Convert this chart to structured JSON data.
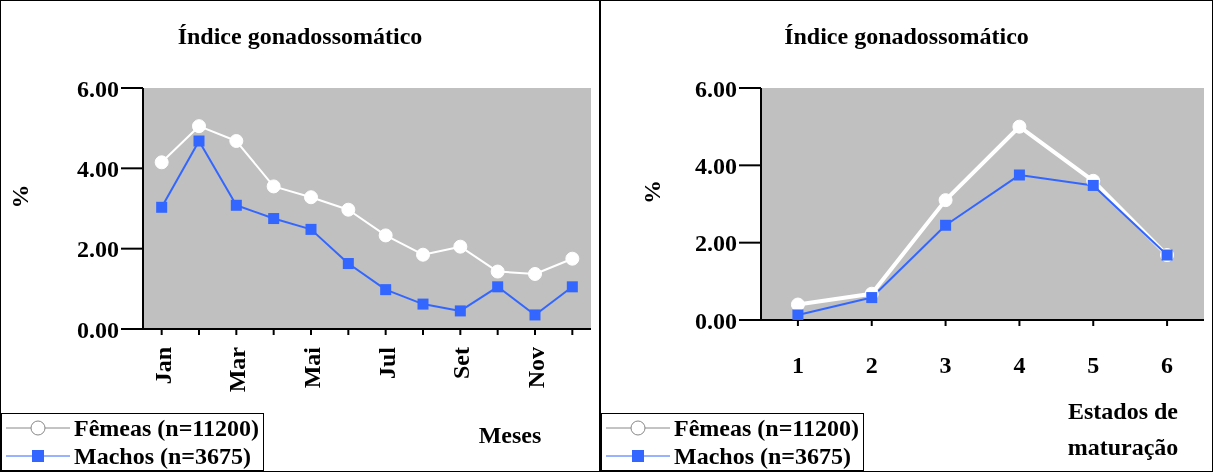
{
  "chart_data": [
    {
      "type": "line",
      "title": "Índice gonadossomático",
      "xlabel": "Meses",
      "ylabel": "%",
      "categories": [
        "Jan",
        null,
        "Mar",
        null,
        "Mai",
        null,
        "Jul",
        null,
        "Set",
        null,
        "Nov",
        null
      ],
      "series": [
        {
          "name": "Fêmeas (n=11200)",
          "color": "#ffffff",
          "marker": "circle",
          "values": [
            4.15,
            5.05,
            4.68,
            3.55,
            3.28,
            2.97,
            2.33,
            1.85,
            2.05,
            1.43,
            1.37,
            1.75
          ]
        },
        {
          "name": "Machos (n=3675)",
          "color": "#3366ff",
          "marker": "square",
          "values": [
            3.03,
            4.68,
            3.08,
            2.75,
            2.48,
            1.63,
            0.98,
            0.62,
            0.45,
            1.05,
            0.35,
            1.05
          ]
        }
      ],
      "ylim": [
        0,
        6
      ],
      "yticks": [
        {
          "value": 0,
          "label": "0.00"
        },
        {
          "value": 2,
          "label": "2.00"
        },
        {
          "value": 4,
          "label": "4.00"
        },
        {
          "value": 6,
          "label": "6.00"
        }
      ],
      "grid": false,
      "legend": "bottom left",
      "line_style": "solid"
    },
    {
      "type": "line",
      "title": "Índice gonadossomático",
      "xlabel": "Estados de maturação",
      "ylabel": "%",
      "categories": [
        "1",
        "2",
        "3",
        "4",
        "5",
        "6"
      ],
      "series": [
        {
          "name": "Fêmeas (n=11200)",
          "color": "#ffffff",
          "marker": "circle",
          "values": [
            0.4,
            0.68,
            3.1,
            5.0,
            3.6,
            1.68
          ]
        },
        {
          "name": "Machos (n=3675)",
          "color": "#3366ff",
          "marker": "square",
          "values": [
            0.13,
            0.58,
            2.45,
            3.75,
            3.48,
            1.68
          ]
        }
      ],
      "ylim": [
        0,
        6
      ],
      "yticks": [
        {
          "value": 0,
          "label": "0.00"
        },
        {
          "value": 2,
          "label": "2.00"
        },
        {
          "value": 4,
          "label": "4.00"
        },
        {
          "value": 6,
          "label": "6.00"
        }
      ],
      "grid": false,
      "legend": "bottom left",
      "line_style": "solid"
    }
  ]
}
